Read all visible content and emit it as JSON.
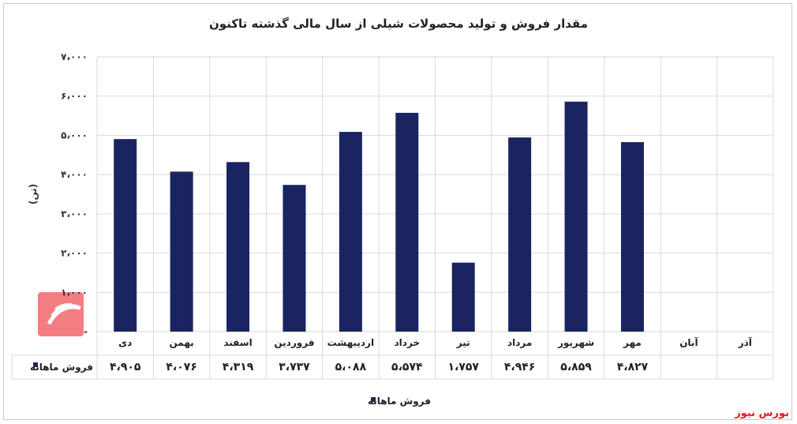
{
  "chart_data": {
    "type": "bar",
    "title": "مقدار فروش و تولید محصولات شیلی از سال مالی گذشته تاکنون",
    "ylabel": "(تن)",
    "ylim": [
      0,
      7000
    ],
    "yticks": [
      0,
      1000,
      2000,
      3000,
      4000,
      5000,
      6000,
      7000
    ],
    "ytick_labels": [
      "-",
      "۱،۰۰۰",
      "۲،۰۰۰",
      "۳،۰۰۰",
      "۴،۰۰۰",
      "۵،۰۰۰",
      "۶،۰۰۰",
      "۷،۰۰۰"
    ],
    "categories": [
      "دی",
      "بهمن",
      "اسفند",
      "فروردین",
      "اردیبهشت",
      "خرداد",
      "تیر",
      "مرداد",
      "شهریور",
      "مهر",
      "آبان",
      "آذر"
    ],
    "series": [
      {
        "name": "فروش ماهانه",
        "color": "#1a2460",
        "values": [
          4905,
          4076,
          4319,
          3737,
          5088,
          5574,
          1757,
          4946,
          5859,
          4827,
          null,
          null
        ],
        "value_labels": [
          "۴،۹۰۵",
          "۴،۰۷۶",
          "۴،۳۱۹",
          "۳،۷۳۷",
          "۵،۰۸۸",
          "۵،۵۷۴",
          "۱،۷۵۷",
          "۴،۹۴۶",
          "۵،۸۵۹",
          "۴،۸۲۷",
          "",
          ""
        ]
      }
    ],
    "grid": true,
    "legend_position": "bottom",
    "data_table": true
  },
  "watermark": {
    "text": "بورس نیوز",
    "color": "#e8161d",
    "logo": "بورس نیوز"
  }
}
